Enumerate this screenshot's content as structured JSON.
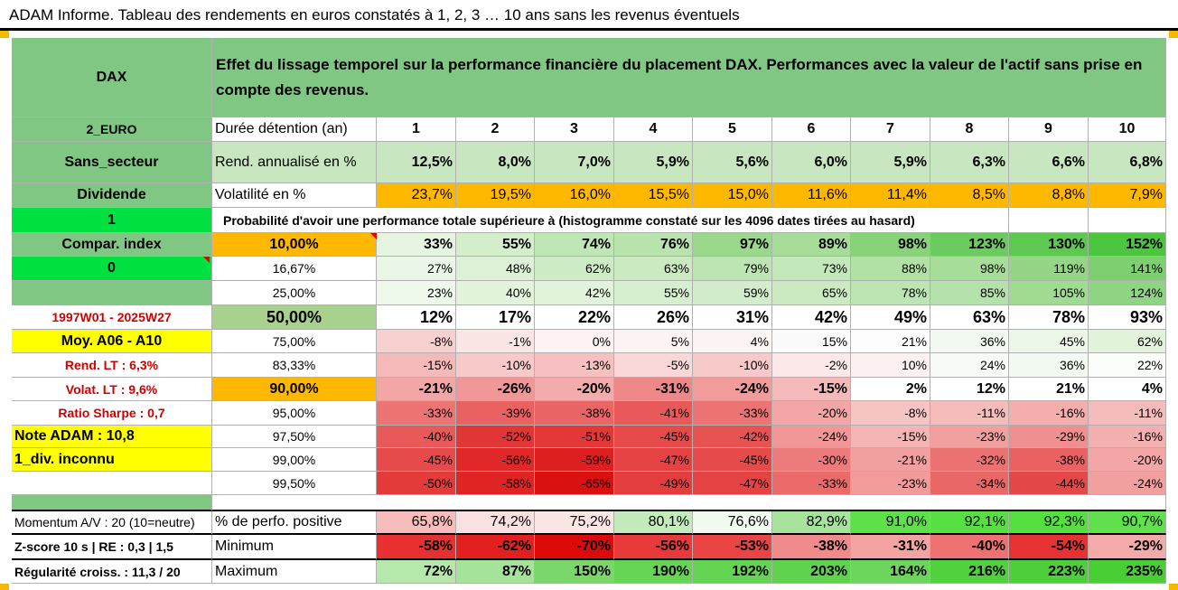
{
  "title": "ADAM Informe. Tableau des rendements en euros constatés à 1, 2, 3 … 10 ans sans les revenus éventuels",
  "left": {
    "name": "DAX",
    "code": "2_EURO",
    "sector": "Sans_secteur",
    "dividend_label": "Dividende",
    "one": "1",
    "compar": "Compar. index",
    "zero": "0",
    "period": "1997W01 - 2025W27",
    "moy": "Moy. A06 - A10",
    "rend_lt": "Rend. LT :    6,3%",
    "volat_lt": "Volat. LT :    9,6%",
    "sharpe": "Ratio Sharpe :    0,7",
    "note": "Note ADAM : 10,8",
    "div": "1_div. inconnu",
    "momentum": "Momentum A/V : 20 (10=neutre)",
    "zscore": "Z-score 10 s | RE : 0,3 | 1,5",
    "regularite": "Régularité croiss. : 11,3 / 20"
  },
  "header": {
    "description": "Effet du lissage temporel sur la performance financière du placement DAX. Performances avec la valeur de l'actif sans prise en compte des revenus.",
    "duree_label": "Durée détention (an)",
    "years": [
      "1",
      "2",
      "3",
      "4",
      "5",
      "6",
      "7",
      "8",
      "9",
      "10"
    ],
    "rend_label": "Rend. annualisé en %",
    "rend": [
      "12,5%",
      "8,0%",
      "7,0%",
      "5,9%",
      "5,6%",
      "6,0%",
      "5,9%",
      "6,3%",
      "6,6%",
      "6,8%"
    ],
    "vol_label": "Volatilité en %",
    "vol": [
      "23,7%",
      "19,5%",
      "16,0%",
      "15,5%",
      "15,0%",
      "11,6%",
      "11,4%",
      "8,5%",
      "8,8%",
      "7,9%"
    ],
    "proba_label": "Probabilité d'avoir une performance totale supérieure à (histogramme constaté sur les 4096 dates tirées au hasard)"
  },
  "prob_rows": [
    {
      "level": "10,00%",
      "values": [
        "33%",
        "55%",
        "74%",
        "76%",
        "97%",
        "89%",
        "98%",
        "123%",
        "130%",
        "152%"
      ]
    },
    {
      "level": "16,67%",
      "values": [
        "27%",
        "48%",
        "62%",
        "63%",
        "79%",
        "73%",
        "88%",
        "98%",
        "119%",
        "141%"
      ]
    },
    {
      "level": "25,00%",
      "values": [
        "23%",
        "40%",
        "42%",
        "55%",
        "59%",
        "65%",
        "78%",
        "85%",
        "105%",
        "124%"
      ]
    },
    {
      "level": "50,00%",
      "values": [
        "12%",
        "17%",
        "22%",
        "26%",
        "31%",
        "42%",
        "49%",
        "63%",
        "78%",
        "93%"
      ]
    },
    {
      "level": "75,00%",
      "values": [
        "-8%",
        "-1%",
        "0%",
        "5%",
        "4%",
        "15%",
        "21%",
        "36%",
        "45%",
        "62%"
      ]
    },
    {
      "level": "83,33%",
      "values": [
        "-15%",
        "-10%",
        "-13%",
        "-5%",
        "-10%",
        "-2%",
        "10%",
        "24%",
        "36%",
        "22%"
      ]
    },
    {
      "level": "90,00%",
      "values": [
        "-21%",
        "-26%",
        "-20%",
        "-31%",
        "-24%",
        "-15%",
        "2%",
        "12%",
        "21%",
        "4%"
      ]
    },
    {
      "level": "95,00%",
      "values": [
        "-33%",
        "-39%",
        "-38%",
        "-41%",
        "-33%",
        "-20%",
        "-8%",
        "-11%",
        "-16%",
        "-11%"
      ]
    },
    {
      "level": "97,50%",
      "values": [
        "-40%",
        "-52%",
        "-51%",
        "-45%",
        "-42%",
        "-24%",
        "-15%",
        "-23%",
        "-29%",
        "-16%"
      ]
    },
    {
      "level": "99,00%",
      "values": [
        "-45%",
        "-56%",
        "-59%",
        "-47%",
        "-45%",
        "-30%",
        "-21%",
        "-32%",
        "-38%",
        "-20%"
      ]
    },
    {
      "level": "99,50%",
      "values": [
        "-50%",
        "-58%",
        "-65%",
        "-49%",
        "-47%",
        "-33%",
        "-23%",
        "-34%",
        "-44%",
        "-24%"
      ]
    }
  ],
  "bottom": {
    "pos_label": "% de perfo. positive",
    "pos": [
      "65,8%",
      "74,2%",
      "75,2%",
      "80,1%",
      "76,6%",
      "82,9%",
      "91,0%",
      "92,1%",
      "92,3%",
      "90,7%"
    ],
    "min_label": "Minimum",
    "min": [
      "-58%",
      "-62%",
      "-70%",
      "-56%",
      "-53%",
      "-38%",
      "-31%",
      "-40%",
      "-54%",
      "-29%"
    ],
    "max_label": "Maximum",
    "max": [
      "72%",
      "87%",
      "150%",
      "190%",
      "192%",
      "203%",
      "164%",
      "216%",
      "223%",
      "235%"
    ]
  },
  "colors": {
    "prob": [
      [
        "#e6f5e1",
        "#d4eecc",
        "#bfe6b5",
        "#b8e3ad",
        "#9ad98c",
        "#a6dd98",
        "#88d37a",
        "#6ccb5e",
        "#5ec950",
        "#4cc53f"
      ],
      [
        "#eaf7e6",
        "#dcf1d5",
        "#cdebc4",
        "#cbeac2",
        "#bde5b3",
        "#c3e8b9",
        "#b2e1a6",
        "#a6dd98",
        "#95d686",
        "#7ecf6f"
      ],
      [
        "#eef8eb",
        "#e3f4dd",
        "#e2f3dc",
        "#d6efcf",
        "#d2edca",
        "#cbeac2",
        "#bde5b3",
        "#b5e2aa",
        "#a0db92",
        "#8ed482"
      ],
      [
        "#ffffff",
        "#ffffff",
        "#ffffff",
        "#ffffff",
        "#ffffff",
        "#ffffff",
        "#ffffff",
        "#ffffff",
        "#ffffff",
        "#ffffff"
      ],
      [
        "#f8d0d0",
        "#fbe6e6",
        "#fdf3f3",
        "#fdf5f5",
        "#fdf4f4",
        "#fbfbfb",
        "#fdfdfd",
        "#f2f9f0",
        "#ecf7e9",
        "#e2f3dc"
      ],
      [
        "#f5b9b9",
        "#f8c9c9",
        "#f7c0c0",
        "#fad8d8",
        "#f8c9c9",
        "#fce8e8",
        "#fdf0f0",
        "#f7fbf5",
        "#f2f9f0",
        "#fafdf9"
      ],
      [
        "#f3a6a6",
        "#f19797",
        "#f3abab",
        "#ee8888",
        "#f19b9b",
        "#f5b9b9",
        "#ffffff",
        "#ffffff",
        "#ffffff",
        "#ffffff"
      ],
      [
        "#ec7474",
        "#e96161",
        "#ea6565",
        "#e85a5a",
        "#ec7474",
        "#f3a6a6",
        "#f7c4c4",
        "#f6bcbc",
        "#f4aeae",
        "#f6bcbc"
      ],
      [
        "#e85a5a",
        "#e23535",
        "#e33838",
        "#e64a4a",
        "#e75353",
        "#f19797",
        "#f5b5b5",
        "#f29f9f",
        "#ef8f8f",
        "#f4b0b0"
      ],
      [
        "#e64a4a",
        "#e02828",
        "#de1f1f",
        "#e54343",
        "#e64a4a",
        "#ed7b7b",
        "#f29f9f",
        "#ec7272",
        "#e96161",
        "#f3a6a6"
      ],
      [
        "#e33a3a",
        "#df2424",
        "#db1010",
        "#e33d3d",
        "#e54343",
        "#eb6b6b",
        "#f19b9b",
        "#ea6767",
        "#e54848",
        "#f29f9f"
      ]
    ],
    "pos": [
      "#f7bcbc",
      "#fae1e1",
      "#fbe6e6",
      "#c3ebbc",
      "#f2fbf0",
      "#a8e39e",
      "#5ee04a",
      "#57df43",
      "#55df41",
      "#60e04c"
    ],
    "min": [
      "#e83030",
      "#e22020",
      "#dd0a0a",
      "#e83a3a",
      "#ea4444",
      "#f18a8a",
      "#f4a3a3",
      "#ee7272",
      "#e63232",
      "#f5aaaa"
    ],
    "max": [
      "#b6e8ac",
      "#a4e399",
      "#7ad86b",
      "#66d455",
      "#64d453",
      "#5fd34d",
      "#6cd55c",
      "#52d13f",
      "#4ecf3b",
      "#49ce35"
    ]
  }
}
